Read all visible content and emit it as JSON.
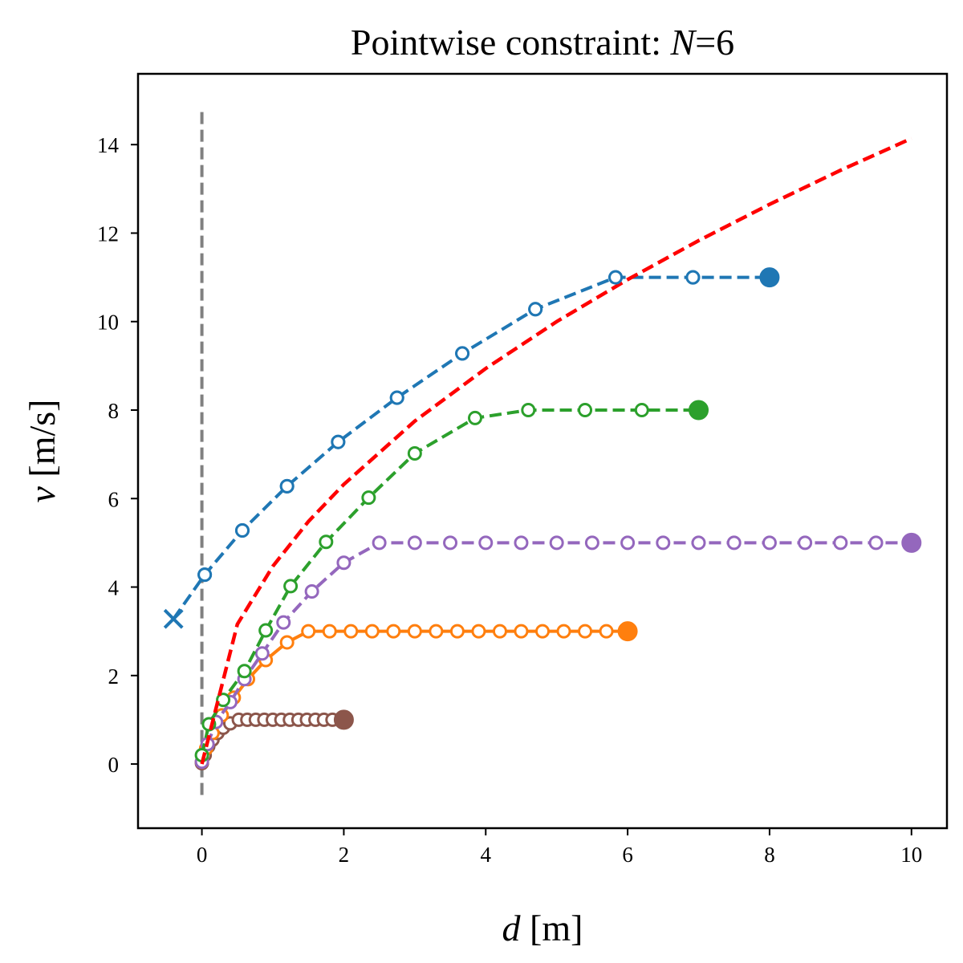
{
  "chart_data": {
    "type": "line",
    "title_prefix": "Pointwise constraint: ",
    "title_var": "N",
    "title_suffix": "=6",
    "xlabel_var": "d",
    "xlabel_unit": " [m]",
    "ylabel_var": "v",
    "ylabel_unit": " [m/s]",
    "xlim": [
      -0.9,
      10.5
    ],
    "ylim": [
      -1.45,
      15.6
    ],
    "xticks": [
      0,
      2,
      4,
      6,
      8,
      10
    ],
    "yticks": [
      0,
      2,
      4,
      6,
      8,
      10,
      12,
      14
    ],
    "grid": false,
    "legend": "none",
    "vline": {
      "x": 0,
      "y_range": [
        -0.7,
        14.8
      ],
      "color": "#808080"
    },
    "boundary": {
      "color": "#ff0000",
      "x": [
        0,
        0.5,
        1,
        1.5,
        2,
        3,
        4,
        5,
        6,
        7,
        8,
        9,
        10
      ],
      "y": [
        0,
        3.16,
        4.47,
        5.48,
        6.32,
        7.75,
        8.94,
        10.0,
        10.95,
        11.83,
        12.65,
        13.42,
        14.14
      ]
    },
    "series": [
      {
        "color": "#1f77b4",
        "start_marker": "x",
        "x": [
          -0.4,
          0.04,
          0.57,
          1.2,
          1.92,
          2.75,
          3.67,
          4.7,
          5.83,
          6.92,
          8.0
        ],
        "y": [
          3.28,
          4.28,
          5.28,
          6.28,
          7.28,
          8.28,
          9.28,
          10.28,
          11.0,
          11.0,
          11.0
        ]
      },
      {
        "color": "#2ca02c",
        "x": [
          0,
          0.1,
          0.3,
          0.6,
          0.9,
          1.25,
          1.75,
          2.35,
          3.0,
          3.85,
          4.6,
          5.4,
          6.2,
          7.0
        ],
        "y": [
          0.2,
          0.9,
          1.45,
          2.1,
          3.02,
          4.02,
          5.02,
          6.02,
          7.02,
          7.82,
          8.0,
          8.0,
          8.0,
          8.0
        ],
        "dashed": true
      },
      {
        "color": "#9467bd",
        "x": [
          0,
          0.08,
          0.2,
          0.4,
          0.6,
          0.85,
          1.15,
          1.55,
          2.0,
          2.5,
          3.0,
          3.5,
          4.0,
          4.5,
          5.0,
          5.5,
          6.0,
          6.5,
          7.0,
          7.5,
          8.0,
          8.5,
          9.0,
          9.5,
          10.0
        ],
        "y": [
          0.05,
          0.45,
          0.95,
          1.4,
          1.92,
          2.5,
          3.2,
          3.9,
          4.55,
          5.0,
          5.0,
          5.0,
          5.0,
          5.0,
          5.0,
          5.0,
          5.0,
          5.0,
          5.0,
          5.0,
          5.0,
          5.0,
          5.0,
          5.0,
          5.0
        ],
        "dashed": true
      },
      {
        "color": "#ff7f0e",
        "x": [
          0,
          0.06,
          0.15,
          0.28,
          0.45,
          0.65,
          0.9,
          1.2,
          1.5,
          1.8,
          2.1,
          2.4,
          2.7,
          3.0,
          3.3,
          3.6,
          3.9,
          4.2,
          4.5,
          4.8,
          5.1,
          5.4,
          5.7,
          6.0
        ],
        "y": [
          0.05,
          0.35,
          0.7,
          1.1,
          1.5,
          1.92,
          2.35,
          2.75,
          3.0,
          3.0,
          3.0,
          3.0,
          3.0,
          3.0,
          3.0,
          3.0,
          3.0,
          3.0,
          3.0,
          3.0,
          3.0,
          3.0,
          3.0,
          3.0
        ],
        "dashed": false
      },
      {
        "color": "#8c564b",
        "x": [
          0,
          0.04,
          0.09,
          0.15,
          0.22,
          0.3,
          0.4,
          0.52,
          0.64,
          0.76,
          0.88,
          1.0,
          1.12,
          1.24,
          1.36,
          1.48,
          1.6,
          1.72,
          1.84,
          2.0
        ],
        "y": [
          0.02,
          0.2,
          0.4,
          0.55,
          0.7,
          0.82,
          0.92,
          1.0,
          1.0,
          1.0,
          1.0,
          1.0,
          1.0,
          1.0,
          1.0,
          1.0,
          1.0,
          1.0,
          1.0,
          1.0
        ],
        "dashed": false
      }
    ]
  }
}
